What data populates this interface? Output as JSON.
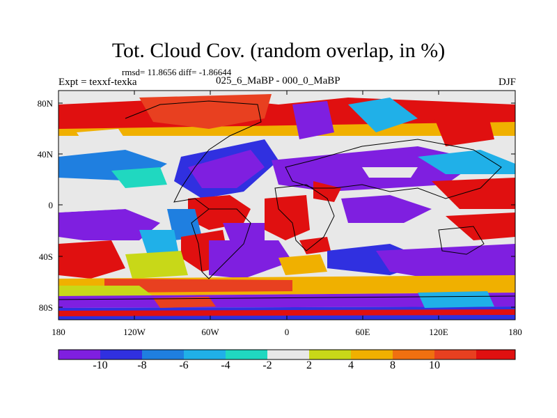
{
  "title": "Tot. Cloud Cov. (random overlap, in %)",
  "stats": "rmsd= 11.8656 diff= -1.86644",
  "experiment": "Expt = texxf-texka",
  "difference_label": "025_6_MaBP - 000_0_MaBP",
  "season": "DJF",
  "lat_ticks": [
    "80N",
    "40N",
    "0",
    "40S",
    "80S"
  ],
  "lon_ticks": [
    "180",
    "120W",
    "60W",
    "0",
    "60E",
    "120E",
    "180"
  ],
  "colorbar": {
    "labels": [
      "-10",
      "-8",
      "-6",
      "-4",
      "-2",
      "2",
      "4",
      "8",
      "10"
    ],
    "colors": [
      "#7f1fe0",
      "#3030e0",
      "#1f7fe0",
      "#20b0e8",
      "#20d8c0",
      "#e8e8e8",
      "#c8d818",
      "#f0b000",
      "#f07010",
      "#e84020",
      "#e01010"
    ]
  }
}
